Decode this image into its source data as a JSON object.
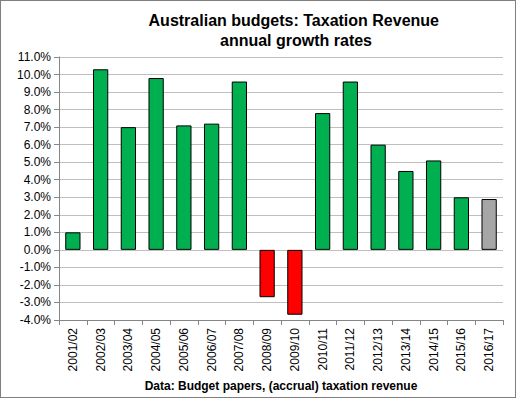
{
  "chart_data": {
    "type": "bar",
    "title": "Australian budgets: Taxation Revenue annual growth rates",
    "xlabel": "Data: Budget papers, (accrual) taxation revenue",
    "categories": [
      "2001/02",
      "2002/03",
      "2003/04",
      "2004/05",
      "2005/06",
      "2006/07",
      "2007/08",
      "2008/09",
      "2009/10",
      "2010/11",
      "2011/12",
      "2012/13",
      "2013/14",
      "2014/15",
      "2015/16",
      "2016/17"
    ],
    "values": [
      1.0,
      10.3,
      7.0,
      9.8,
      7.1,
      7.2,
      9.6,
      -2.7,
      -3.7,
      7.8,
      9.6,
      6.0,
      4.5,
      5.1,
      3.0,
      2.9
    ],
    "colors": [
      "#00b050",
      "#00b050",
      "#00b050",
      "#00b050",
      "#00b050",
      "#00b050",
      "#00b050",
      "#ff0000",
      "#ff0000",
      "#00b050",
      "#00b050",
      "#00b050",
      "#00b050",
      "#00b050",
      "#00b050",
      "#a6a6a6"
    ],
    "ylim": [
      -4,
      11
    ],
    "yticks": [
      {
        "value": -4,
        "label": "-4.0%"
      },
      {
        "value": -3,
        "label": "-3.0%"
      },
      {
        "value": -2,
        "label": "-2.0%"
      },
      {
        "value": -1,
        "label": "-1.0%"
      },
      {
        "value": 0,
        "label": "0.0%"
      },
      {
        "value": 1,
        "label": "1.0%"
      },
      {
        "value": 2,
        "label": "2.0%"
      },
      {
        "value": 3,
        "label": "3.0%"
      },
      {
        "value": 4,
        "label": "4.0%"
      },
      {
        "value": 5,
        "label": "5.0%"
      },
      {
        "value": 6,
        "label": "6.0%"
      },
      {
        "value": 7,
        "label": "7.0%"
      },
      {
        "value": 8,
        "label": "8.0%"
      },
      {
        "value": 9,
        "label": "9.0%"
      },
      {
        "value": 10,
        "label": "10.0%"
      },
      {
        "value": 11,
        "label": "11.0%"
      }
    ],
    "grid": true
  }
}
